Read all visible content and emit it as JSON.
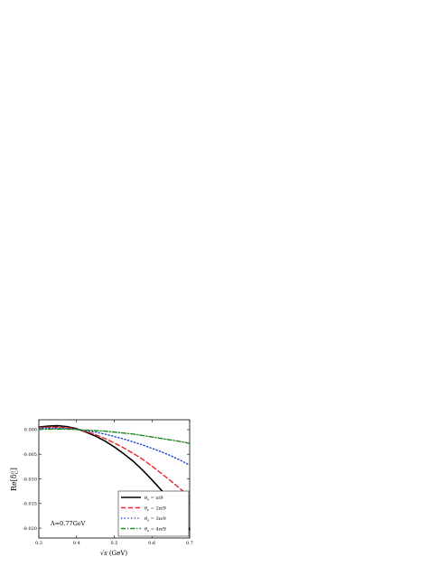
{
  "chart_data": {
    "type": "line",
    "xlabel_root": "√s",
    "xlabel_rest": "(GeV)",
    "ylabel_main": "Re[δ",
    "ylabel_sup": "π",
    "ylabel_sub": "C",
    "ylabel_end": "]",
    "annotation": "Λ=0.77GeV",
    "xlim": [
      0.3,
      0.7
    ],
    "ylim": [
      -0.022,
      0.002
    ],
    "xticks": [
      "0.3",
      "0.4",
      "0.5",
      "0.6",
      "0.7"
    ],
    "xtick_values": [
      0.3,
      0.4,
      0.5,
      0.6,
      0.7
    ],
    "yticks": [
      "0.000",
      "-0.005",
      "-0.010",
      "-0.015",
      "-0.020"
    ],
    "ytick_values": [
      0.0,
      -0.005,
      -0.01,
      -0.015,
      -0.02
    ],
    "legend_position": "bottom-right",
    "series": [
      {
        "name": "θe = π/9",
        "label_base": "θ",
        "label_sub": "e",
        "label_rest": " = π/9",
        "color": "#000000",
        "style": "solid",
        "x": [
          0.3,
          0.325,
          0.35,
          0.375,
          0.4,
          0.425,
          0.45,
          0.475,
          0.5,
          0.525,
          0.55,
          0.575,
          0.6,
          0.625,
          0.65,
          0.675,
          0.7
        ],
        "y": [
          0.0005,
          0.0007,
          0.0008,
          0.0006,
          0.0002,
          -0.0005,
          -0.0013,
          -0.0023,
          -0.0035,
          -0.0049,
          -0.0064,
          -0.0082,
          -0.0102,
          -0.0123,
          -0.0146,
          -0.0172,
          -0.0203
        ]
      },
      {
        "name": "θe = 2π/9",
        "label_base": "θ",
        "label_sub": "e",
        "label_rest": " = 2π/9",
        "color": "#e8242c",
        "style": "dash",
        "x": [
          0.3,
          0.325,
          0.35,
          0.375,
          0.4,
          0.425,
          0.45,
          0.475,
          0.5,
          0.525,
          0.55,
          0.575,
          0.6,
          0.625,
          0.65,
          0.675,
          0.7
        ],
        "y": [
          0.0004,
          0.0005,
          0.0005,
          0.0004,
          0.0001,
          -0.0004,
          -0.001,
          -0.0018,
          -0.0027,
          -0.0037,
          -0.0048,
          -0.006,
          -0.0074,
          -0.0089,
          -0.0104,
          -0.012,
          -0.0137
        ]
      },
      {
        "name": "θe = 3π/9",
        "label_base": "θ",
        "label_sub": "e",
        "label_rest": " = 3π/9",
        "color": "#1f3fd9",
        "style": "dot",
        "x": [
          0.3,
          0.325,
          0.35,
          0.375,
          0.4,
          0.425,
          0.45,
          0.475,
          0.5,
          0.525,
          0.55,
          0.575,
          0.6,
          0.625,
          0.65,
          0.675,
          0.7
        ],
        "y": [
          0.0003,
          0.0003,
          0.0003,
          0.0002,
          0.0001,
          -0.0002,
          -0.0005,
          -0.0009,
          -0.0014,
          -0.0019,
          -0.0025,
          -0.0031,
          -0.0038,
          -0.0045,
          -0.0053,
          -0.0062,
          -0.0072
        ]
      },
      {
        "name": "θe = 4π/9",
        "label_base": "θ",
        "label_sub": "e",
        "label_rest": " = 4π/9",
        "color": "#1e8a1e",
        "style": "dashdot",
        "x": [
          0.3,
          0.325,
          0.35,
          0.375,
          0.4,
          0.425,
          0.45,
          0.475,
          0.5,
          0.525,
          0.55,
          0.575,
          0.6,
          0.625,
          0.65,
          0.675,
          0.7
        ],
        "y": [
          0.0001,
          0.0001,
          0.0001,
          0.0001,
          0.0,
          -0.0001,
          -0.0002,
          -0.0003,
          -0.0005,
          -0.0007,
          -0.0009,
          -0.0012,
          -0.0015,
          -0.0018,
          -0.0021,
          -0.0024,
          -0.0028
        ]
      }
    ]
  }
}
